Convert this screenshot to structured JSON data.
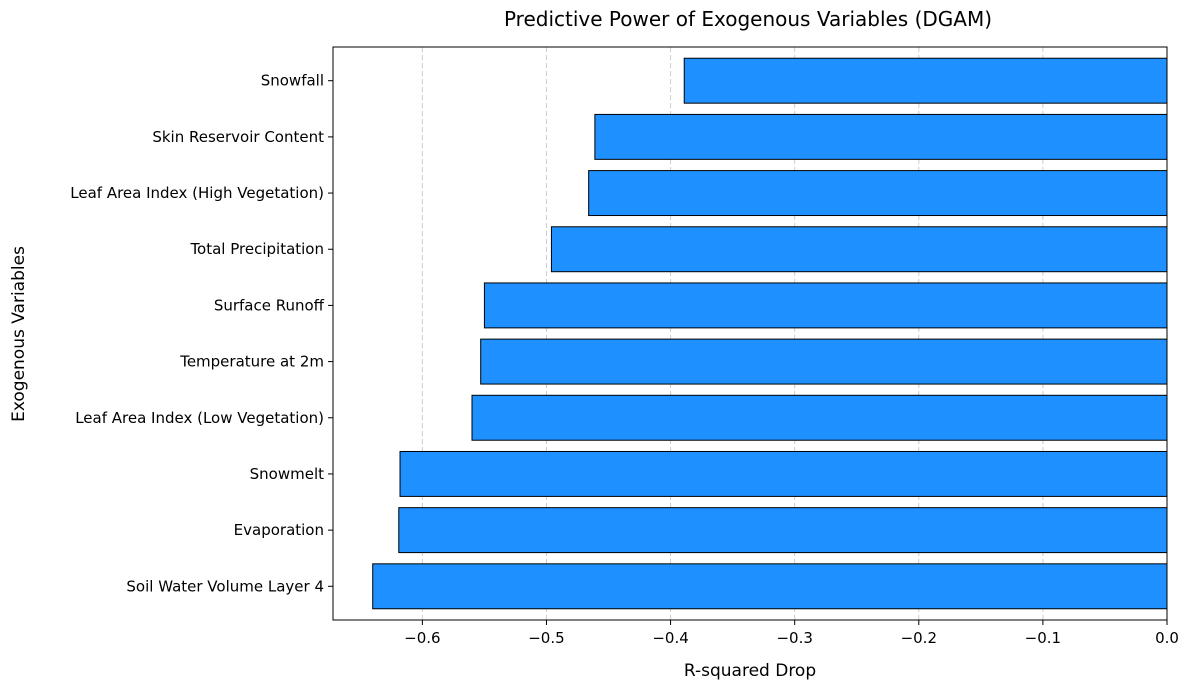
{
  "chart_data": {
    "type": "bar",
    "orientation": "horizontal",
    "title": "Predictive Power of Exogenous Variables (DGAM)",
    "xlabel": "R-squared Drop",
    "ylabel": "Exogenous Variables",
    "categories": [
      "Snowfall",
      "Skin Reservoir Content",
      "Leaf Area Index (High Vegetation)",
      "Total Precipitation",
      "Surface Runoff",
      "Temperature at 2m",
      "Leaf Area Index (Low Vegetation)",
      "Snowmelt",
      "Evaporation",
      "Soil Water Volume Layer 4"
    ],
    "values": [
      -0.389,
      -0.461,
      -0.466,
      -0.496,
      -0.55,
      -0.553,
      -0.56,
      -0.618,
      -0.619,
      -0.64
    ],
    "xlim": [
      -0.672,
      0.0
    ],
    "xticks": [
      -0.6,
      -0.5,
      -0.4,
      -0.3,
      -0.2,
      -0.1,
      0.0
    ],
    "xtick_labels": [
      "−0.6",
      "−0.5",
      "−0.4",
      "−0.3",
      "−0.2",
      "−0.1",
      "0.0"
    ],
    "grid": "x-dashed",
    "bar_color": "#1e90ff",
    "bar_edge_color": "#000000",
    "grid_color": "#cccccc"
  }
}
